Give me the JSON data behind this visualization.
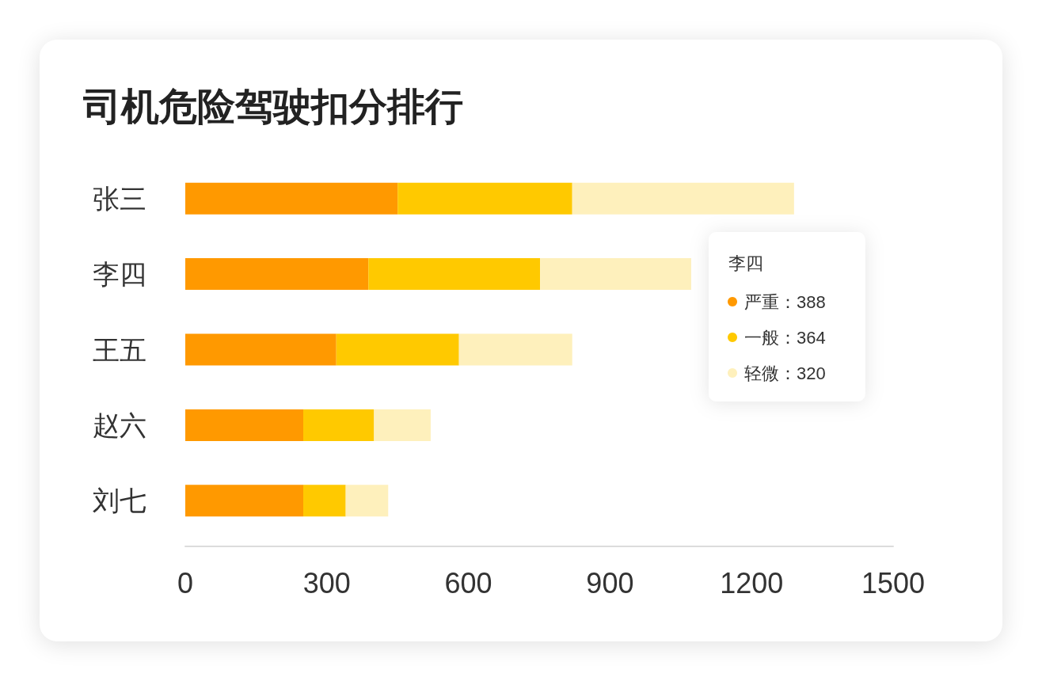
{
  "chart_data": {
    "type": "bar",
    "title": "司机危险驾驶扣分排行",
    "orientation": "horizontal",
    "stacked": true,
    "categories": [
      "张三",
      "李四",
      "王五",
      "赵六",
      "刘七"
    ],
    "series": [
      {
        "name": "严重：",
        "color": "#ff9900",
        "values": [
          450,
          388,
          320,
          250,
          250
        ]
      },
      {
        "name": "一般：",
        "color": "#ffc900",
        "values": [
          370,
          364,
          260,
          150,
          90
        ]
      },
      {
        "name": "轻微：",
        "color": "#fef0bc",
        "values": [
          470,
          320,
          240,
          120,
          90
        ]
      }
    ],
    "xlim": [
      0,
      1500
    ],
    "xticks": [
      0,
      300,
      600,
      900,
      1200,
      1500
    ],
    "legend": "right",
    "legend_title": "李四",
    "annotations": [
      "388",
      "364",
      "320"
    ]
  }
}
